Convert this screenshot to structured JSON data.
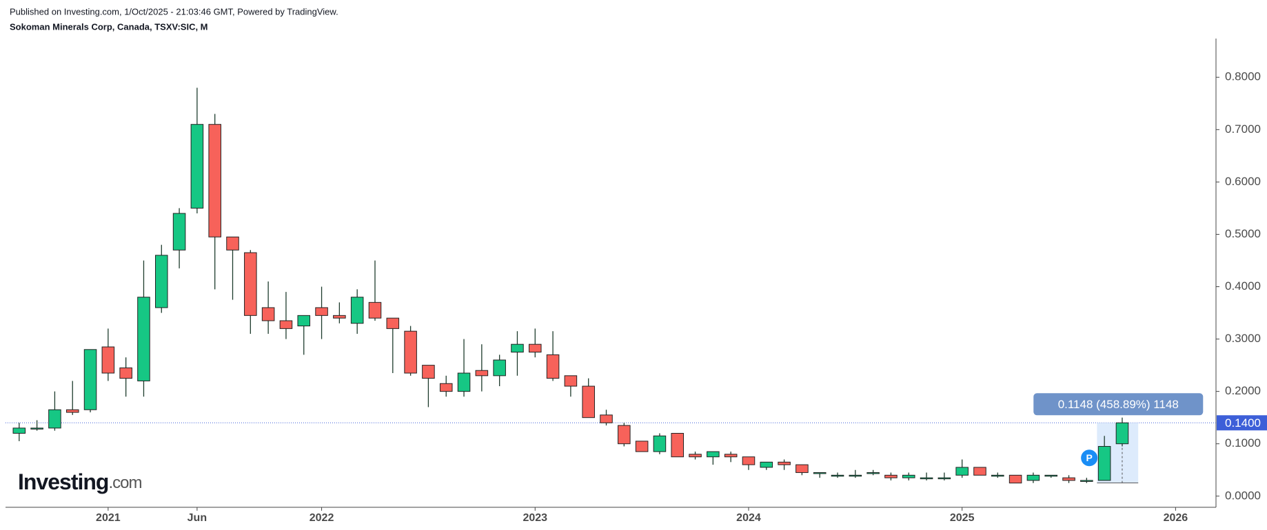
{
  "header": {
    "published": "Published on Investing.com, 1/Oct/2025 - 21:03:46 GMT, Powered by TradingView.",
    "symbol": "Sokoman Minerals Corp, Canada, TSXV:SIC, M"
  },
  "logo": {
    "name": "Investing",
    "suffix": ".com"
  },
  "chart_data": {
    "type": "candlestick",
    "x": [
      "2020-08",
      "2020-09",
      "2020-10",
      "2020-11",
      "2020-12",
      "2021-01",
      "2021-02",
      "2021-03",
      "2021-04",
      "2021-05",
      "2021-06",
      "2021-07",
      "2021-08",
      "2021-09",
      "2021-10",
      "2021-11",
      "2021-12",
      "2022-01",
      "2022-02",
      "2022-03",
      "2022-04",
      "2022-05",
      "2022-06",
      "2022-07",
      "2022-08",
      "2022-09",
      "2022-10",
      "2022-11",
      "2022-12",
      "2023-01",
      "2023-02",
      "2023-03",
      "2023-04",
      "2023-05",
      "2023-06",
      "2023-07",
      "2023-08",
      "2023-09",
      "2023-10",
      "2023-11",
      "2023-12",
      "2024-01",
      "2024-02",
      "2024-03",
      "2024-04",
      "2024-05",
      "2024-06",
      "2024-07",
      "2024-08",
      "2024-09",
      "2024-10",
      "2024-11",
      "2024-12",
      "2025-01",
      "2025-02",
      "2025-03",
      "2025-04",
      "2025-05",
      "2025-06",
      "2025-07",
      "2025-08",
      "2025-09",
      "2025-10"
    ],
    "open": [
      0.12,
      0.13,
      0.13,
      0.165,
      0.165,
      0.285,
      0.245,
      0.22,
      0.36,
      0.47,
      0.55,
      0.71,
      0.495,
      0.465,
      0.36,
      0.335,
      0.325,
      0.36,
      0.345,
      0.33,
      0.37,
      0.34,
      0.315,
      0.25,
      0.215,
      0.2,
      0.24,
      0.23,
      0.275,
      0.29,
      0.27,
      0.23,
      0.21,
      0.155,
      0.135,
      0.105,
      0.085,
      0.12,
      0.08,
      0.075,
      0.08,
      0.075,
      0.055,
      0.065,
      0.06,
      0.045,
      0.04,
      0.04,
      0.045,
      0.04,
      0.035,
      0.035,
      0.035,
      0.04,
      0.055,
      0.04,
      0.04,
      0.03,
      0.04,
      0.035,
      0.03,
      0.03,
      0.1
    ],
    "high": [
      0.14,
      0.145,
      0.2,
      0.22,
      0.28,
      0.32,
      0.265,
      0.45,
      0.48,
      0.55,
      0.78,
      0.73,
      0.495,
      0.47,
      0.41,
      0.39,
      0.345,
      0.4,
      0.37,
      0.395,
      0.45,
      0.34,
      0.325,
      0.25,
      0.23,
      0.3,
      0.29,
      0.27,
      0.315,
      0.32,
      0.315,
      0.23,
      0.225,
      0.165,
      0.14,
      0.105,
      0.12,
      0.12,
      0.085,
      0.085,
      0.085,
      0.075,
      0.065,
      0.07,
      0.06,
      0.045,
      0.045,
      0.05,
      0.05,
      0.045,
      0.045,
      0.045,
      0.045,
      0.07,
      0.055,
      0.045,
      0.04,
      0.045,
      0.04,
      0.04,
      0.035,
      0.115,
      0.15
    ],
    "low": [
      0.105,
      0.125,
      0.125,
      0.155,
      0.16,
      0.22,
      0.19,
      0.19,
      0.35,
      0.435,
      0.54,
      0.395,
      0.375,
      0.31,
      0.31,
      0.3,
      0.27,
      0.3,
      0.33,
      0.31,
      0.335,
      0.235,
      0.23,
      0.17,
      0.19,
      0.19,
      0.2,
      0.21,
      0.23,
      0.265,
      0.22,
      0.19,
      0.15,
      0.135,
      0.095,
      0.085,
      0.08,
      0.075,
      0.07,
      0.06,
      0.065,
      0.05,
      0.05,
      0.05,
      0.04,
      0.035,
      0.035,
      0.035,
      0.04,
      0.03,
      0.03,
      0.03,
      0.03,
      0.035,
      0.04,
      0.035,
      0.025,
      0.025,
      0.035,
      0.025,
      0.025,
      0.03,
      0.095
    ],
    "close": [
      0.13,
      0.13,
      0.165,
      0.16,
      0.28,
      0.235,
      0.225,
      0.38,
      0.46,
      0.54,
      0.71,
      0.495,
      0.47,
      0.345,
      0.335,
      0.32,
      0.345,
      0.345,
      0.34,
      0.38,
      0.34,
      0.32,
      0.235,
      0.225,
      0.2,
      0.235,
      0.23,
      0.26,
      0.29,
      0.275,
      0.225,
      0.21,
      0.15,
      0.14,
      0.1,
      0.085,
      0.115,
      0.075,
      0.075,
      0.085,
      0.075,
      0.06,
      0.065,
      0.06,
      0.045,
      0.045,
      0.04,
      0.04,
      0.045,
      0.035,
      0.04,
      0.035,
      0.035,
      0.055,
      0.04,
      0.04,
      0.025,
      0.04,
      0.04,
      0.03,
      0.03,
      0.095,
      0.14
    ],
    "up_color": "#16c784",
    "down_color": "#f7625a",
    "xlim": [
      "2020-07",
      "2026-03"
    ],
    "xticks": [
      {
        "value": "2021-01",
        "label": "2021"
      },
      {
        "value": "2021-06",
        "label": "Jun"
      },
      {
        "value": "2022-01",
        "label": "2022"
      },
      {
        "value": "2023-01",
        "label": "2023"
      },
      {
        "value": "2024-01",
        "label": "2024"
      },
      {
        "value": "2025-01",
        "label": "2025"
      },
      {
        "value": "2026-01",
        "label": "2026"
      }
    ],
    "ylim": [
      -0.02,
      0.87
    ],
    "yticks": [
      {
        "value": 0,
        "label": "0.0000"
      },
      {
        "value": 0.1,
        "label": "0.1000"
      },
      {
        "value": 0.2,
        "label": "0.2000"
      },
      {
        "value": 0.3,
        "label": "0.3000"
      },
      {
        "value": 0.4,
        "label": "0.4000"
      },
      {
        "value": 0.5,
        "label": "0.5000"
      },
      {
        "value": 0.6,
        "label": "0.6000"
      },
      {
        "value": 0.7,
        "label": "0.7000"
      },
      {
        "value": 0.8,
        "label": "0.8000"
      }
    ],
    "last_price": {
      "value": 0.14,
      "label": "0.1400"
    },
    "measure": {
      "label": "0.1148 (458.89%) 1148",
      "range": [
        0.0252,
        0.14
      ]
    },
    "marker": "P"
  }
}
